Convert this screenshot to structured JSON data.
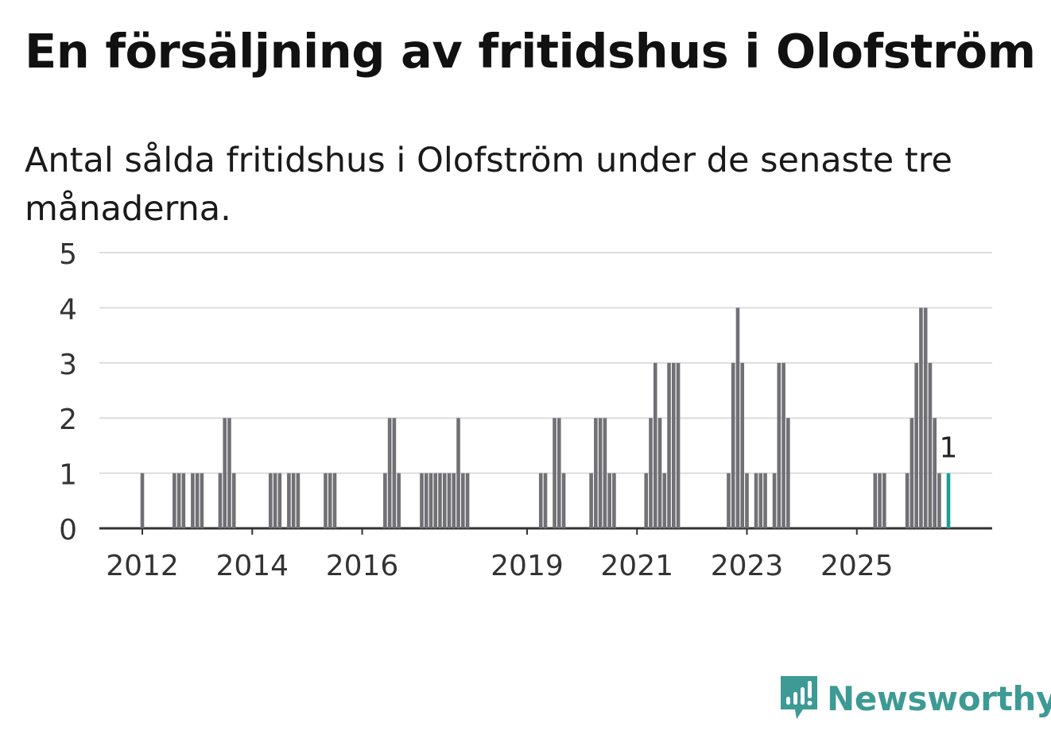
{
  "title": "En försäljning av fritidshus i Olofström",
  "subtitle": "Antal sålda fritidshus i Olofström under de senaste tre månaderna.",
  "brand": {
    "name": "Newsworthy",
    "icon": "newsworthy-logo-icon",
    "color": "#3d9a94"
  },
  "chart_data": {
    "type": "bar",
    "ylim": [
      0,
      5
    ],
    "yticks": [
      0,
      1,
      2,
      3,
      4,
      5
    ],
    "xticks": [
      "2012",
      "2014",
      "2016",
      "2019",
      "2021",
      "2023",
      "2025"
    ],
    "grid": true,
    "bar_color": "#707075",
    "highlight_color": "#1a9e97",
    "highlight_label": "1",
    "series": [
      {
        "values": [
          1,
          0,
          0,
          0,
          0,
          0,
          0,
          1,
          1,
          1,
          0,
          1,
          1,
          1,
          0,
          0,
          0,
          1,
          2,
          2,
          1,
          0,
          0,
          0,
          0,
          0,
          0,
          0,
          1,
          1,
          1,
          0,
          1,
          1,
          1,
          0,
          0,
          0,
          0,
          0,
          1,
          1,
          1,
          0,
          0,
          0,
          0,
          0,
          0,
          0,
          0,
          0,
          0,
          1,
          2,
          2,
          1,
          0,
          0,
          0,
          0,
          1,
          1,
          1,
          1,
          1,
          1,
          1,
          1,
          2,
          1,
          1,
          0,
          0,
          0,
          0,
          0,
          0,
          0,
          0,
          0,
          0,
          0,
          0,
          0,
          0,
          0,
          1,
          1,
          0,
          2,
          2,
          1,
          0,
          0,
          0,
          0,
          0,
          1,
          2,
          2,
          2,
          1,
          1,
          0,
          0,
          0,
          0,
          0,
          0,
          1,
          2,
          3,
          2,
          1,
          3,
          3,
          3,
          0,
          0,
          0,
          0,
          0,
          0,
          0,
          0,
          0,
          0,
          1,
          3,
          4,
          3,
          1,
          0,
          1,
          1,
          1,
          0,
          1,
          3,
          3,
          2,
          0,
          0,
          0,
          0,
          0,
          0,
          0,
          0,
          0,
          0,
          0,
          0,
          0,
          0,
          0,
          0,
          0,
          0,
          1,
          1,
          1,
          0,
          0,
          0,
          0,
          1,
          2,
          3,
          4,
          4,
          3,
          2,
          1,
          0,
          1
        ]
      }
    ]
  }
}
